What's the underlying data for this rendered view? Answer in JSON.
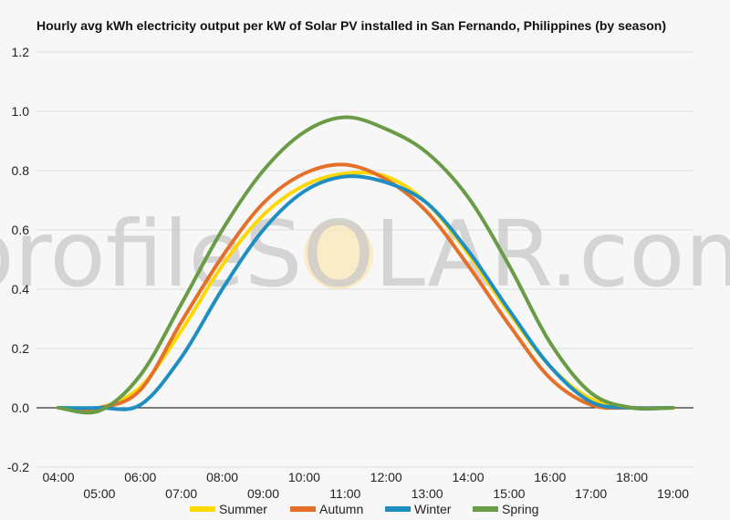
{
  "watermark": "profileSOLAR.com",
  "chart_data": {
    "type": "line",
    "title": "Hourly avg kWh electricity output per kW of Solar PV installed in San Fernando, Philippines (by season)",
    "xlabel": "",
    "ylabel": "",
    "ylim": [
      -0.2,
      1.2
    ],
    "yticks": [
      "-0.2",
      "0.0",
      "0.2",
      "0.4",
      "0.6",
      "0.8",
      "1.0",
      "1.2"
    ],
    "x": [
      "04:00",
      "05:00",
      "06:00",
      "07:00",
      "08:00",
      "09:00",
      "10:00",
      "11:00",
      "12:00",
      "13:00",
      "14:00",
      "15:00",
      "16:00",
      "17:00",
      "18:00",
      "19:00"
    ],
    "grid": true,
    "legend_position": "bottom",
    "series": [
      {
        "name": "Summer",
        "color": "#ffd800",
        "values": [
          0.0,
          0.0,
          0.07,
          0.26,
          0.48,
          0.65,
          0.75,
          0.79,
          0.78,
          0.69,
          0.52,
          0.32,
          0.14,
          0.03,
          0.0,
          0.0
        ]
      },
      {
        "name": "Autumn",
        "color": "#e4702a",
        "values": [
          0.0,
          0.0,
          0.06,
          0.29,
          0.51,
          0.69,
          0.79,
          0.82,
          0.77,
          0.66,
          0.48,
          0.28,
          0.1,
          0.01,
          0.0,
          0.0
        ]
      },
      {
        "name": "Winter",
        "color": "#1f8fc1",
        "values": [
          0.0,
          0.0,
          0.01,
          0.17,
          0.4,
          0.6,
          0.73,
          0.78,
          0.76,
          0.69,
          0.53,
          0.33,
          0.14,
          0.02,
          0.0,
          0.0
        ]
      },
      {
        "name": "Spring",
        "color": "#6a9b47",
        "values": [
          0.0,
          -0.01,
          0.11,
          0.35,
          0.6,
          0.8,
          0.93,
          0.98,
          0.94,
          0.86,
          0.71,
          0.48,
          0.22,
          0.05,
          0.0,
          0.0
        ]
      }
    ]
  }
}
